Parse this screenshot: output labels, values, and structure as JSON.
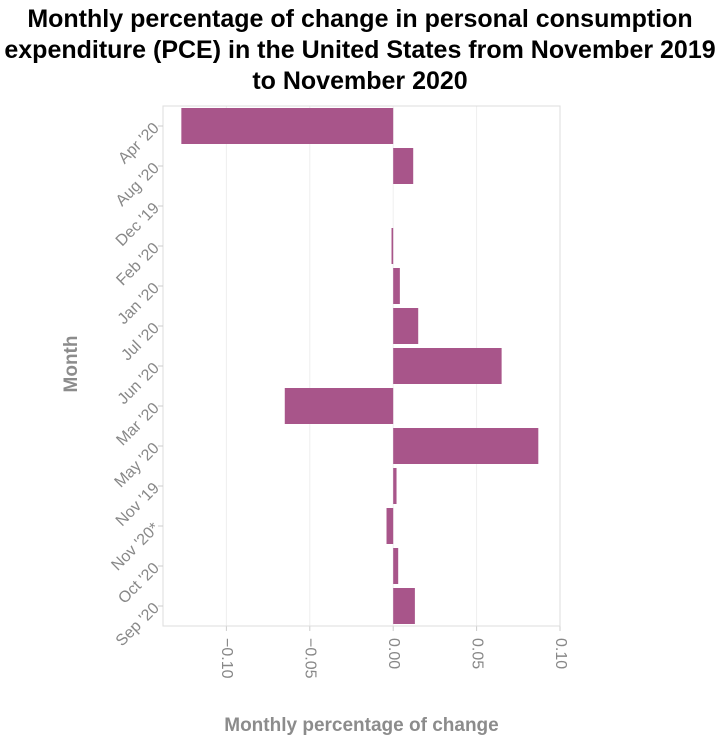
{
  "chart_data": {
    "type": "bar",
    "orientation": "horizontal",
    "title": "Monthly percentage of change in personal consumption expenditure (PCE) in the United States from November 2019 to November 2020",
    "xlabel": "Monthly percentage of change",
    "ylabel": "Month",
    "categories": [
      "Apr '20",
      "Aug '20",
      "Dec '19",
      "Feb '20",
      "Jan '20",
      "Jul '20",
      "Jun '20",
      "Mar '20",
      "May '20",
      "Nov '19",
      "Nov '20*",
      "Oct '20",
      "Sep '20"
    ],
    "values": [
      -0.127,
      0.012,
      0.0,
      -0.001,
      0.004,
      0.015,
      0.065,
      -0.065,
      0.087,
      0.002,
      -0.004,
      0.003,
      0.013
    ],
    "xlim": [
      -0.138,
      0.1
    ],
    "xticks": [
      -0.1,
      -0.05,
      0.0,
      0.05,
      0.1
    ],
    "xtick_labels": [
      "−0.10",
      "−0.05",
      "0.00",
      "0.05",
      "0.10"
    ],
    "bar_color": "#a8558a",
    "grid": true
  }
}
